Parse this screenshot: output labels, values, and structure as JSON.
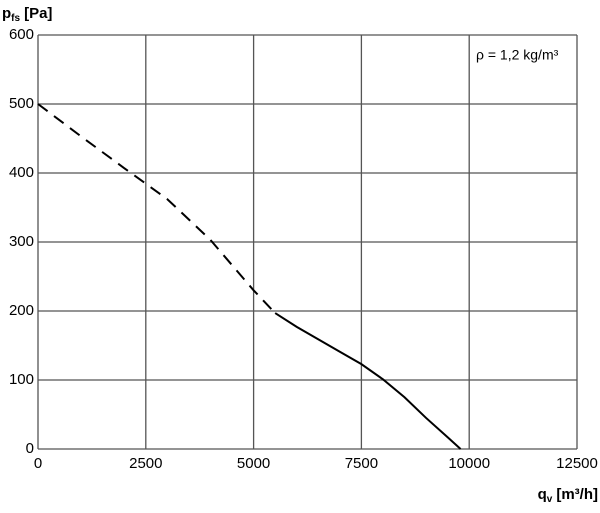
{
  "chart_data": {
    "type": "line",
    "ylabel": {
      "symbol": "p",
      "subscript": "fs",
      "unit": "[Pa]"
    },
    "xlabel": {
      "symbol": "q",
      "subscript": "v",
      "unit": "[m³/h]"
    },
    "annotation": "ρ = 1,2 kg/m³",
    "x": [
      0,
      1000,
      2000,
      3000,
      4000,
      5000,
      5500,
      6000,
      7000,
      7500,
      8000,
      8500,
      9000,
      9500,
      9800
    ],
    "series": [
      {
        "color": "#000000",
        "dashed": true,
        "values": [
          500,
          453,
          407,
          362,
          303,
          230,
          197,
          null,
          null,
          null,
          null,
          null,
          null,
          null,
          null
        ]
      },
      {
        "color": "#000000",
        "dashed": false,
        "values": [
          null,
          null,
          null,
          null,
          null,
          null,
          197,
          177,
          141,
          123,
          101,
          75,
          45,
          17,
          0
        ]
      }
    ],
    "xlim": [
      0,
      12500
    ],
    "xticks": [
      0,
      2500,
      5000,
      7500,
      10000,
      12500
    ],
    "ylim": [
      0,
      600
    ],
    "yticks": [
      0,
      100,
      200,
      300,
      400,
      500,
      600
    ],
    "grid": true
  }
}
